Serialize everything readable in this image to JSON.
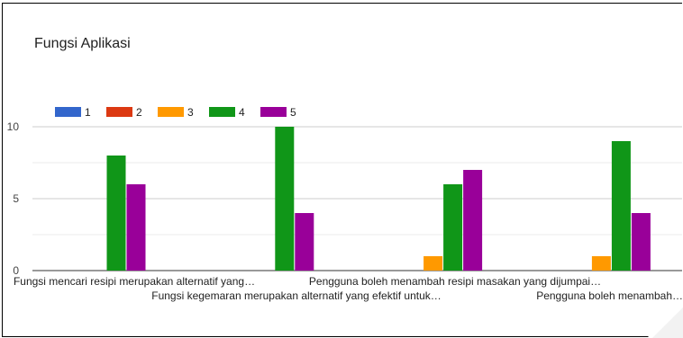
{
  "chart_data": {
    "type": "bar",
    "title": "Fungsi Aplikasi",
    "xlabel": "",
    "ylabel": "",
    "ylim": [
      0,
      10
    ],
    "yticks": [
      0,
      5,
      10
    ],
    "grid": true,
    "legend_position": "top-left",
    "categories": [
      "Fungsi mencari resipi merupakan alternatif yang…",
      "Fungsi kegemaran merupakan alternatif yang efektif untuk…",
      "Pengguna boleh menambah resipi masakan yang dijumpai…",
      "Pengguna boleh menambah…"
    ],
    "series": [
      {
        "name": "1",
        "color": "#3366cc",
        "values": [
          0,
          0,
          0,
          0
        ]
      },
      {
        "name": "2",
        "color": "#dc3912",
        "values": [
          0,
          0,
          0,
          0
        ]
      },
      {
        "name": "3",
        "color": "#ff9900",
        "values": [
          0,
          0,
          1,
          1
        ]
      },
      {
        "name": "4",
        "color": "#109618",
        "values": [
          8,
          10,
          6,
          9
        ]
      },
      {
        "name": "5",
        "color": "#990099",
        "values": [
          6,
          4,
          7,
          4
        ]
      }
    ]
  }
}
